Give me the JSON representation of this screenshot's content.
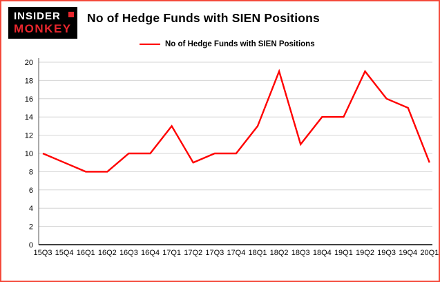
{
  "logo": {
    "line1": "INSIDER",
    "line2": "MONKEY"
  },
  "title": "No of Hedge Funds with SIEN Positions",
  "legend": {
    "label": "No of Hedge Funds with SIEN Positions"
  },
  "colors": {
    "line": "#ff0000",
    "border": "#f4493b",
    "grid": "#d4d4d4",
    "axis": "#000000",
    "logo_red": "#e8262d"
  },
  "chart_data": {
    "type": "line",
    "categories": [
      "15Q3",
      "15Q4",
      "16Q1",
      "16Q2",
      "16Q3",
      "16Q4",
      "17Q1",
      "17Q2",
      "17Q3",
      "17Q4",
      "18Q1",
      "18Q2",
      "18Q3",
      "18Q4",
      "19Q1",
      "19Q2",
      "19Q3",
      "19Q4",
      "20Q1"
    ],
    "values": [
      10,
      9,
      8,
      8,
      10,
      10,
      13,
      9,
      10,
      10,
      13,
      19,
      11,
      14,
      14,
      19,
      16,
      15,
      9
    ],
    "title": "No of Hedge Funds with SIEN Positions",
    "xlabel": "",
    "ylabel": "",
    "ylim": [
      0,
      20
    ],
    "ytick_step": 2,
    "grid": true,
    "legend_position": "top-left",
    "series_color": "#ff0000"
  }
}
